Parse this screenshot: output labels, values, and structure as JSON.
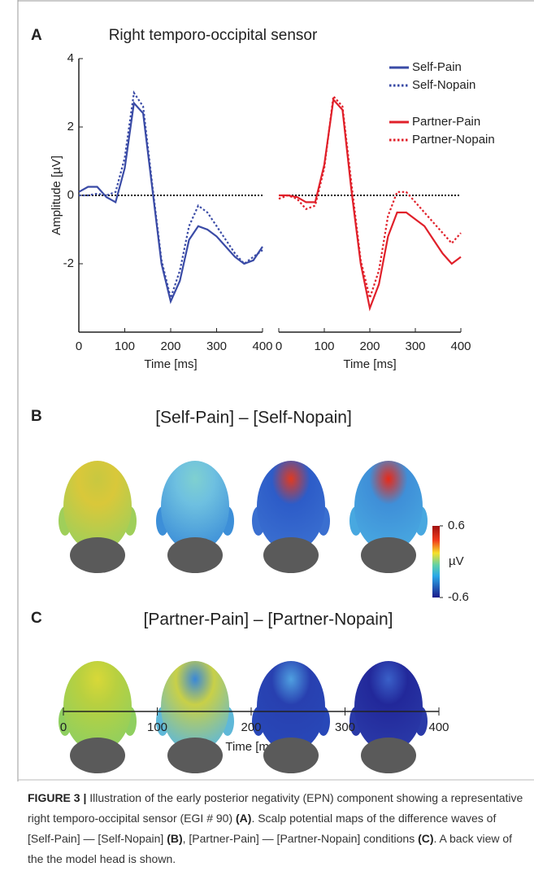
{
  "panel_labels": [
    "A",
    "B",
    "C"
  ],
  "chart_data": [
    {
      "type": "line",
      "title": "Right temporo-occipital sensor",
      "ylabel": "Amplitude [µV]",
      "xlabel": "Time [ms]",
      "x": [
        0,
        20,
        40,
        60,
        80,
        100,
        120,
        140,
        160,
        180,
        200,
        220,
        240,
        260,
        280,
        300,
        320,
        340,
        360,
        380,
        400
      ],
      "xlim": [
        0,
        400
      ],
      "xticks": [
        0,
        100,
        200,
        300,
        400
      ],
      "ylim": [
        -4,
        4
      ],
      "yticks": [
        -2,
        0,
        2,
        4
      ],
      "reference_line": 0,
      "series": [
        {
          "name": "Self-Pain",
          "color": "#3a4ba6",
          "style": "solid",
          "values": [
            0.1,
            0.25,
            0.25,
            -0.05,
            -0.2,
            0.8,
            2.7,
            2.4,
            0.2,
            -2.0,
            -3.1,
            -2.5,
            -1.3,
            -0.9,
            -1.0,
            -1.2,
            -1.5,
            -1.8,
            -2.0,
            -1.9,
            -1.5
          ]
        },
        {
          "name": "Self-Nopain",
          "color": "#3a4ba6",
          "style": "dotted",
          "values": [
            0,
            0,
            0.05,
            0,
            0.1,
            1.1,
            3.0,
            2.6,
            0.3,
            -1.9,
            -3.0,
            -2.2,
            -0.9,
            -0.3,
            -0.5,
            -0.9,
            -1.3,
            -1.7,
            -2.0,
            -1.8,
            -1.6
          ]
        }
      ]
    },
    {
      "type": "line",
      "xlabel": "Time [ms]",
      "x": [
        0,
        20,
        40,
        60,
        80,
        100,
        120,
        140,
        160,
        180,
        200,
        220,
        240,
        260,
        280,
        300,
        320,
        340,
        360,
        380,
        400
      ],
      "xlim": [
        0,
        400
      ],
      "xticks": [
        0,
        100,
        200,
        300,
        400
      ],
      "ylim": [
        -4,
        4
      ],
      "reference_line": 0,
      "series": [
        {
          "name": "Partner-Pain",
          "color": "#e0202a",
          "style": "solid",
          "values": [
            0,
            0,
            -0.05,
            -0.2,
            -0.2,
            0.9,
            2.8,
            2.5,
            0.1,
            -2.0,
            -3.3,
            -2.6,
            -1.2,
            -0.5,
            -0.5,
            -0.7,
            -0.9,
            -1.3,
            -1.7,
            -2.0,
            -1.8
          ]
        },
        {
          "name": "Partner-Nopain",
          "color": "#e0202a",
          "style": "dotted",
          "values": [
            -0.1,
            0,
            -0.1,
            -0.4,
            -0.3,
            0.8,
            2.9,
            2.6,
            0.3,
            -1.9,
            -3.0,
            -2.2,
            -0.6,
            0.1,
            0.1,
            -0.2,
            -0.5,
            -0.8,
            -1.1,
            -1.4,
            -1.1
          ]
        }
      ]
    }
  ],
  "scalp_maps": {
    "rows": [
      {
        "title": "[Self-Pain] – [Self-Nopain]"
      },
      {
        "title": "[Partner-Pain] – [Partner-Nopain]"
      }
    ],
    "colorbar": {
      "lim": [
        -0.6,
        0.6
      ],
      "ticks": [
        -0.6,
        0.6
      ],
      "label": "µV"
    },
    "time_axis": {
      "xlim": [
        0,
        400
      ],
      "xticks": [
        0,
        100,
        200,
        300,
        400
      ],
      "xlabel": "Time [ms]"
    }
  },
  "caption": {
    "label": "FIGURE 3 |",
    "text": [
      "Illustration of the early posterior negativity (EPN) component showing a representative right temporo-occipital sensor (EGI # 90) ",
      "(A)",
      ". Scalp potential maps of the difference waves of [Self-Pain] — [Self-Nopain] ",
      "(B)",
      ", [Partner-Pain] — [Partner-Nopain] conditions ",
      "(C)",
      ". A back view of the the model head is shown."
    ]
  }
}
